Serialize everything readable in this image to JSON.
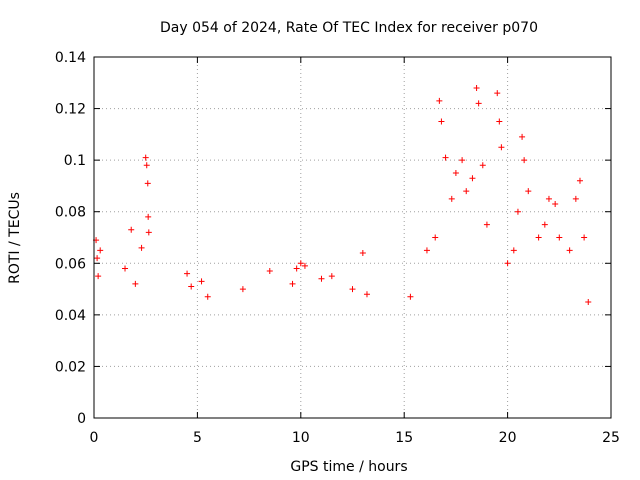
{
  "chart_data": {
    "type": "scatter",
    "title": "Day 054 of 2024, Rate Of TEC Index for receiver p070",
    "xlabel": "GPS time / hours",
    "ylabel": "ROTI / TECUs",
    "xlim": [
      0,
      25
    ],
    "ylim": [
      0,
      0.14
    ],
    "xticks": [
      "0",
      "5",
      "10",
      "15",
      "20",
      "25"
    ],
    "yticks": [
      "0",
      "0.02",
      "0.04",
      "0.06",
      "0.08",
      "0.1",
      "0.12",
      "0.14"
    ],
    "grid": true,
    "marker": "+",
    "series": [
      {
        "name": "ROTI",
        "color": "#ff0000",
        "x": [
          0.1,
          0.15,
          0.2,
          0.3,
          1.5,
          1.8,
          2.0,
          2.3,
          2.5,
          2.55,
          2.6,
          2.62,
          2.65,
          4.5,
          4.7,
          5.2,
          5.5,
          7.2,
          8.5,
          9.6,
          9.8,
          10.0,
          10.2,
          11.0,
          11.5,
          12.5,
          13.0,
          13.2,
          15.3,
          16.1,
          16.5,
          16.7,
          16.8,
          17.0,
          17.3,
          17.5,
          17.8,
          18.0,
          18.3,
          18.5,
          18.6,
          18.8,
          19.0,
          19.5,
          19.6,
          19.7,
          20.0,
          20.3,
          20.5,
          20.7,
          20.8,
          21.0,
          21.5,
          21.8,
          22.0,
          22.3,
          22.5,
          23.0,
          23.3,
          23.5,
          23.7,
          23.9
        ],
        "y": [
          0.069,
          0.062,
          0.055,
          0.065,
          0.058,
          0.073,
          0.052,
          0.066,
          0.101,
          0.098,
          0.091,
          0.078,
          0.072,
          0.056,
          0.051,
          0.053,
          0.047,
          0.05,
          0.057,
          0.052,
          0.058,
          0.06,
          0.059,
          0.054,
          0.055,
          0.05,
          0.064,
          0.048,
          0.047,
          0.065,
          0.07,
          0.123,
          0.115,
          0.101,
          0.085,
          0.095,
          0.1,
          0.088,
          0.093,
          0.128,
          0.122,
          0.098,
          0.075,
          0.126,
          0.115,
          0.105,
          0.06,
          0.065,
          0.08,
          0.109,
          0.1,
          0.088,
          0.07,
          0.075,
          0.085,
          0.083,
          0.07,
          0.065,
          0.085,
          0.092,
          0.07,
          0.045
        ]
      }
    ]
  }
}
